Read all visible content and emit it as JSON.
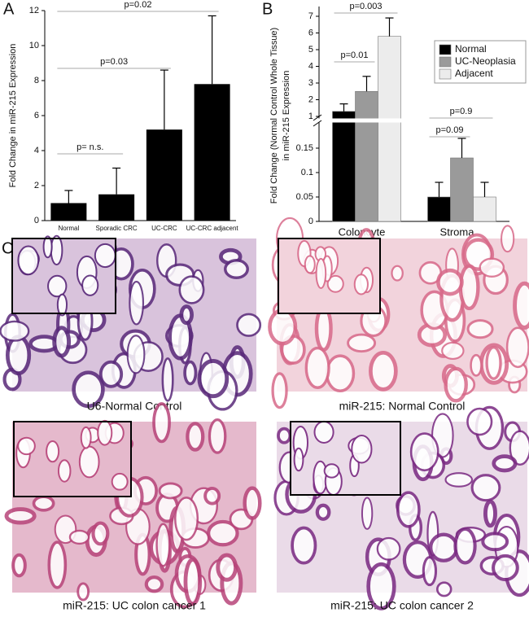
{
  "chart_data": [
    {
      "type": "bar",
      "panel_label": "A",
      "ylabel": "Fold Change in miR-215 Expression",
      "categories": [
        "Normal",
        "Sporadic CRC",
        "UC-CRC",
        "UC-CRC adjacent"
      ],
      "values": [
        1,
        1.5,
        5.2,
        7.8
      ],
      "errors": [
        0.72,
        1.5,
        3.4,
        3.9
      ],
      "color": "#000000",
      "ylim": [
        0,
        12
      ],
      "yticks": [
        0,
        2,
        4,
        6,
        8,
        10,
        12
      ],
      "annotations": [
        "p= n.s.",
        "p=0.03",
        "p=0.02"
      ]
    },
    {
      "type": "grouped_bar",
      "panel_label": "B",
      "ylabel": [
        "Fold Change (Normal Control Whole Tissue)",
        "in miR-215 Expression"
      ],
      "categories": [
        "Coloncyte",
        "Stroma"
      ],
      "series": [
        {
          "name": "Normal",
          "color": "#000000",
          "values": [
            1.3,
            0.05
          ],
          "errors": [
            0.45,
            0.03
          ]
        },
        {
          "name": "UC-Neoplasia",
          "color": "#9a9a9a",
          "values": [
            2.5,
            0.13
          ],
          "errors": [
            0.9,
            0.04
          ]
        },
        {
          "name": "Adjacent",
          "color": "#ececec",
          "values": [
            5.8,
            0.05
          ],
          "errors": [
            1.1,
            0.03
          ]
        }
      ],
      "ylim": [
        0,
        7
      ],
      "axis_break": [
        0.2,
        1
      ],
      "yticks": [
        0,
        0.05,
        0.1,
        0.15,
        1,
        2,
        3,
        4,
        5,
        6,
        7
      ],
      "legend": "upper right",
      "annotations": [
        "p=0.01",
        "p=0.003",
        "p=0.09",
        "p=0.9"
      ]
    }
  ],
  "panel_c": {
    "label": "C",
    "images": [
      {
        "caption": "U6-Normal Control"
      },
      {
        "caption": "miR-215: Normal Control"
      },
      {
        "caption": "miR-215: UC colon cancer 1"
      },
      {
        "caption": "miR-215: UC colon cancer 2"
      }
    ]
  }
}
